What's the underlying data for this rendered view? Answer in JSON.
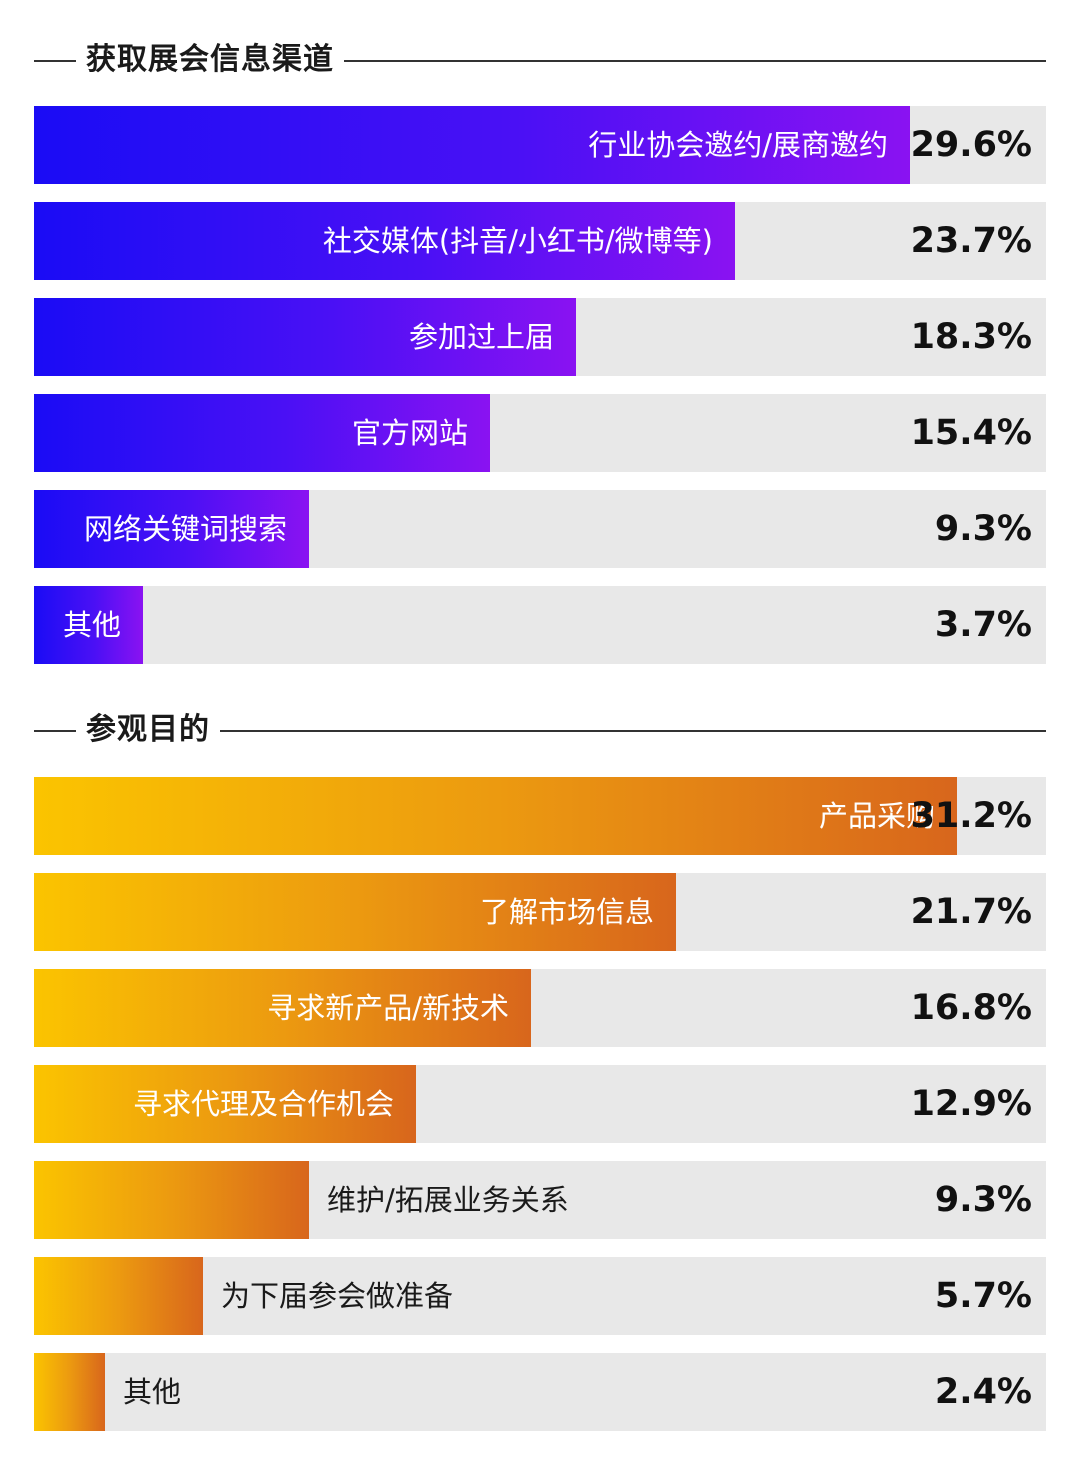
{
  "chart_data": [
    {
      "type": "bar",
      "title": "获取展会信息渠道",
      "unit": "%",
      "categories": [
        "行业协会邀约/展商邀约",
        "社交媒体(抖音/小红书/微博等)",
        "参加过上届",
        "官方网站",
        "网络关键词搜索",
        "其他"
      ],
      "values": [
        29.6,
        23.7,
        18.3,
        15.4,
        9.3,
        3.7
      ],
      "value_labels": [
        "29.6%",
        "23.7%",
        "18.3%",
        "15.4%",
        "9.3%",
        "3.7%"
      ],
      "colors": {
        "start": "#1a0cf5",
        "end": "#8a12f2",
        "track": "#e8e8e8"
      }
    },
    {
      "type": "bar",
      "title": "参观目的",
      "unit": "%",
      "categories": [
        "产品采购",
        "了解市场信息",
        "寻求新产品/新技术",
        "寻求代理及合作机会",
        "维护/拓展业务关系",
        "为下届参会做准备",
        "其他"
      ],
      "values": [
        31.2,
        21.7,
        16.8,
        12.9,
        9.3,
        5.7,
        2.4
      ],
      "value_labels": [
        "31.2%",
        "21.7%",
        "16.8%",
        "12.9%",
        "9.3%",
        "5.7%",
        "2.4%"
      ],
      "colors": {
        "start": "#fbc400",
        "end": "#d8661c",
        "track": "#e8e8e8"
      }
    }
  ]
}
